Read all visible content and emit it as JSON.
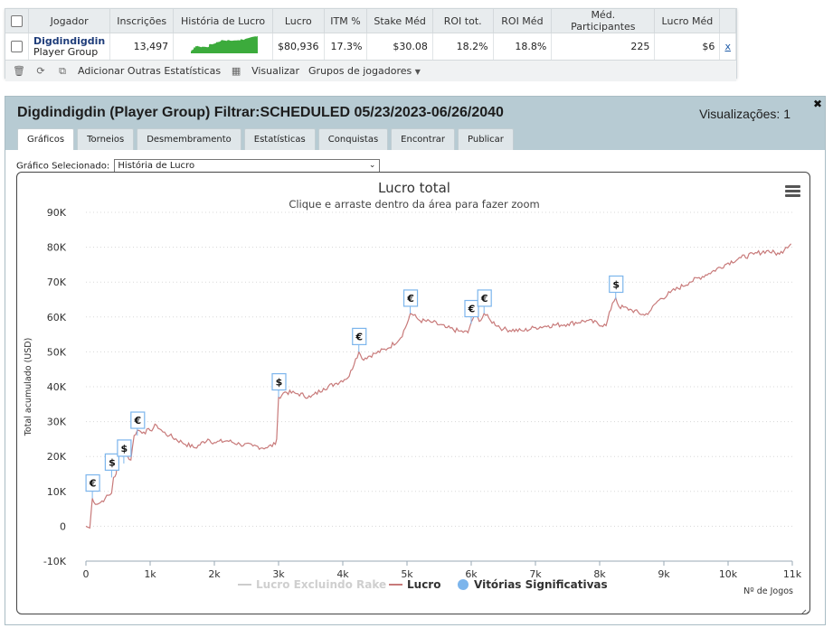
{
  "stats": {
    "headers": [
      "Jogador",
      "Inscrições",
      "História de Lucro",
      "Lucro",
      "ITM %",
      "Stake Méd",
      "ROI tot.",
      "ROI Méd",
      "Méd. Participantes",
      "Lucro Méd"
    ],
    "row": {
      "player_name": "Digdindigdin",
      "player_type": "Player Group",
      "inscricoes": "13,497",
      "lucro": "$80,936",
      "itm": "17.3%",
      "stake_med": "$30.08",
      "roi_tot": "18.2%",
      "roi_med": "18.8%",
      "med_participantes": "225",
      "lucro_med": "$6",
      "close": "x"
    },
    "toolbar": {
      "add_stats": "Adicionar Outras Estatísticas",
      "visualize": "Visualizar",
      "player_groups": "Grupos de jogadores"
    }
  },
  "panel": {
    "title": "Digdindigdin (Player Group) Filtrar:SCHEDULED 05/23/2023-06/26/2040",
    "views": "Visualizações: 1",
    "close": "✖",
    "tabs": [
      "Gráficos",
      "Torneios",
      "Desmembramento",
      "Estatísticas",
      "Conquistas",
      "Encontrar",
      "Publicar"
    ],
    "selector_label": "Gráfico Selecionado:",
    "selector_value": "História de Lucro"
  },
  "colors": {
    "profit_line": "#c87a7a",
    "rake_line": "#cccccc",
    "marker": "#7cb5ec",
    "sparkline": "#3cab3c"
  },
  "chart_data": {
    "type": "line",
    "title": "Lucro total",
    "subtitle": "Clique e arraste dentro da área para fazer zoom",
    "xlabel": "Nº de Jogos",
    "ylabel": "Total acumulado (USD)",
    "xlim": [
      0,
      11000
    ],
    "ylim": [
      -10000,
      90000
    ],
    "x_ticks": [
      0,
      1000,
      2000,
      3000,
      4000,
      5000,
      6000,
      7000,
      8000,
      9000,
      10000,
      11000
    ],
    "x_tick_labels": [
      "0",
      "1k",
      "2k",
      "3k",
      "4k",
      "5k",
      "6k",
      "7k",
      "8k",
      "9k",
      "10k",
      "11k"
    ],
    "y_ticks": [
      -10000,
      0,
      10000,
      20000,
      30000,
      40000,
      50000,
      60000,
      70000,
      80000,
      90000
    ],
    "y_tick_labels": [
      "-10K",
      "0",
      "10K",
      "20K",
      "30K",
      "40K",
      "50K",
      "60K",
      "70K",
      "80K",
      "90K"
    ],
    "grid": true,
    "legend": [
      "Lucro Excluindo Rake",
      "Lucro",
      "Vitórias Significativas"
    ],
    "legend_placement": "bottom-center",
    "series": [
      {
        "name": "Lucro",
        "x": [
          0,
          60,
          100,
          120,
          200,
          300,
          400,
          430,
          470,
          520,
          600,
          650,
          700,
          750,
          800,
          900,
          1000,
          1100,
          1200,
          1300,
          1500,
          1700,
          1900,
          2000,
          2200,
          2400,
          2600,
          2800,
          2950,
          2970,
          3000,
          3100,
          3300,
          3500,
          3700,
          3900,
          4100,
          4200,
          4250,
          4300,
          4500,
          4700,
          4900,
          5000,
          5050,
          5100,
          5200,
          5400,
          5600,
          5800,
          5950,
          6000,
          6050,
          6150,
          6200,
          6300,
          6500,
          6800,
          7000,
          7200,
          7500,
          7800,
          8100,
          8200,
          8250,
          8300,
          8500,
          8700,
          8800,
          8900,
          9100,
          9400,
          9700,
          10000,
          10200,
          10400,
          10600,
          10800,
          10900,
          10980
        ],
        "y": [
          0,
          -500,
          8000,
          7000,
          6500,
          8000,
          9500,
          14000,
          15000,
          22000,
          22500,
          20000,
          19000,
          26000,
          27500,
          27000,
          27500,
          29000,
          27000,
          26000,
          24000,
          22500,
          25000,
          24000,
          24500,
          23500,
          23000,
          22500,
          23500,
          25000,
          37000,
          38500,
          38000,
          37000,
          39500,
          41000,
          43000,
          48000,
          50000,
          48000,
          49500,
          51000,
          54000,
          58000,
          61000,
          60500,
          59000,
          58500,
          57000,
          56000,
          55500,
          58500,
          60500,
          59000,
          61000,
          59000,
          56500,
          56000,
          57000,
          57500,
          58000,
          59000,
          57500,
          64000,
          65500,
          63000,
          62000,
          60500,
          62000,
          64500,
          67000,
          70000,
          72500,
          75500,
          77000,
          78000,
          79000,
          78000,
          80000,
          81000
        ]
      }
    ],
    "markers": [
      {
        "x": 100,
        "y": 8000,
        "label": "€"
      },
      {
        "x": 400,
        "y": 14000,
        "label": "$"
      },
      {
        "x": 590,
        "y": 18000,
        "label": "$"
      },
      {
        "x": 800,
        "y": 26000,
        "label": "€"
      },
      {
        "x": 3000,
        "y": 37000,
        "label": "$"
      },
      {
        "x": 4250,
        "y": 50000,
        "label": "€"
      },
      {
        "x": 5050,
        "y": 61000,
        "label": "€"
      },
      {
        "x": 6000,
        "y": 58000,
        "label": "€"
      },
      {
        "x": 6200,
        "y": 61000,
        "label": "€"
      },
      {
        "x": 8250,
        "y": 65000,
        "label": "$"
      }
    ]
  }
}
